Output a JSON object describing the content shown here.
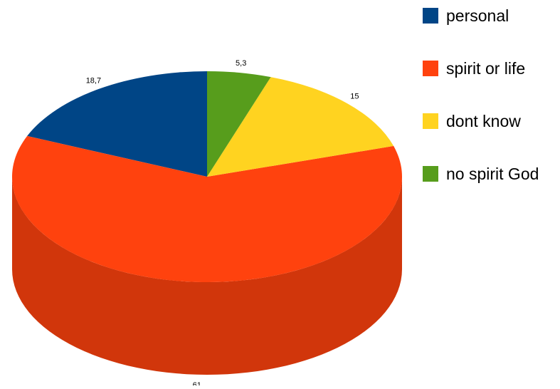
{
  "chart_data": {
    "type": "pie",
    "style": "3d",
    "categories": [
      "personal",
      "spirit or life",
      "dont know",
      "no spirit God"
    ],
    "values": [
      18.7,
      61,
      15,
      5.3
    ],
    "value_labels": [
      "18,7",
      "61",
      "15",
      "5,3"
    ],
    "colors": [
      "#004586",
      "#ff420e",
      "#ffd320",
      "#579d1c"
    ],
    "legend_position": "right"
  },
  "legend": {
    "items": [
      {
        "label": "personal",
        "color": "#004586"
      },
      {
        "label": "spirit or life",
        "color": "#ff420e"
      },
      {
        "label": "dont know",
        "color": "#ffd320"
      },
      {
        "label": "no spirit God",
        "color": "#579d1c"
      }
    ]
  }
}
